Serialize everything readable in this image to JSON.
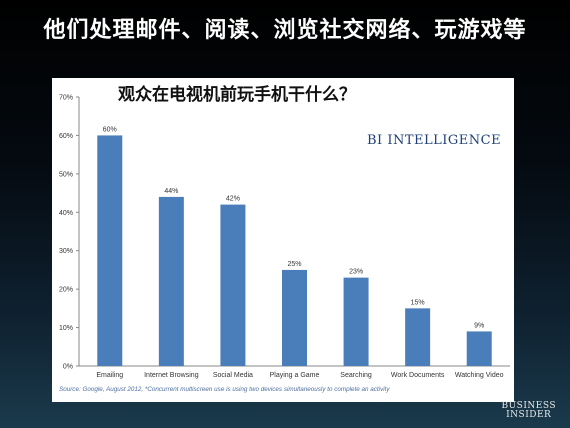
{
  "slide": {
    "title": "他们处理邮件、阅读、浏览社交网络、玩游戏等",
    "source": "Source: Google, August 2012, *Concurrent multiscreen use is using two devices simultaneously to complete an activity",
    "brand_line1": "BUSINESS",
    "brand_line2": "INSIDER"
  },
  "chart_data": {
    "type": "bar",
    "title": "观众在电视机前玩手机干什么？",
    "watermark": "BI INTELLIGENCE",
    "categories": [
      "Emailing",
      "Internet Browsing",
      "Social Media",
      "Playing a Game",
      "Searching",
      "Work Documents",
      "Watching Video"
    ],
    "values": [
      60,
      44,
      42,
      25,
      23,
      15,
      9
    ],
    "value_labels": [
      "60%",
      "44%",
      "42%",
      "25%",
      "23%",
      "15%",
      "9%"
    ],
    "ylim": [
      0,
      70
    ],
    "yticks": [
      0,
      10,
      20,
      30,
      40,
      50,
      60,
      70
    ],
    "ytick_labels": [
      "0%",
      "10%",
      "20%",
      "30%",
      "40%",
      "50%",
      "60%",
      "70%"
    ],
    "bar_color": "#4a7ebb",
    "grid": false
  }
}
